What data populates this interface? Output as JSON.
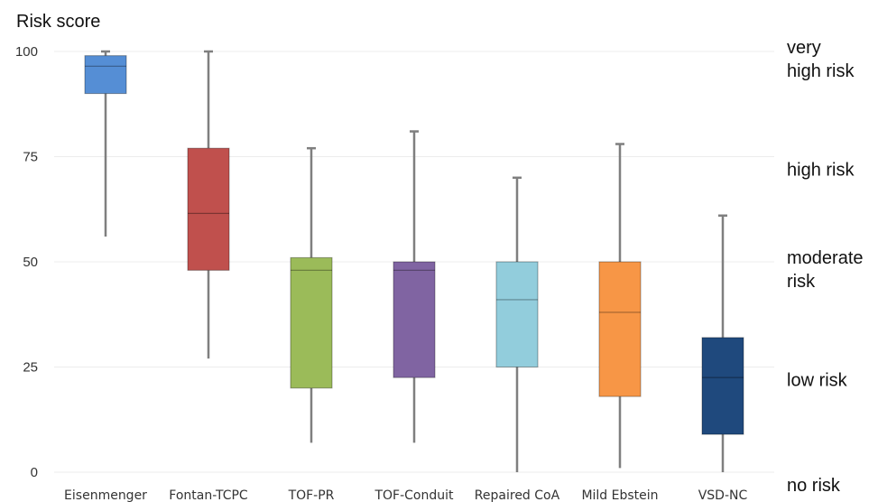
{
  "chart_data": {
    "type": "box",
    "ylabel": "Risk score",
    "ylim": [
      0,
      100
    ],
    "yticks": [
      "0",
      "25",
      "50",
      "75",
      "100"
    ],
    "grid": true,
    "categories": [
      "Eisenmenger",
      "Fontan-TCPC",
      "TOF-PR",
      "TOF-Conduit",
      "Repaired CoA",
      "Mild Ebstein",
      "VSD-NC"
    ],
    "boxes": [
      {
        "category": "Eisenmenger",
        "min": 56,
        "q1": 90,
        "median": 96.5,
        "q3": 99,
        "max": 100,
        "color": "#558ED5"
      },
      {
        "category": "Fontan-TCPC",
        "min": 27,
        "q1": 48,
        "median": 61.5,
        "q3": 77,
        "max": 100,
        "color": "#C0504D"
      },
      {
        "category": "TOF-PR",
        "min": 7,
        "q1": 20,
        "median": 48,
        "q3": 51,
        "max": 77,
        "color": "#9BBB59"
      },
      {
        "category": "TOF-Conduit",
        "min": 7,
        "q1": 22.5,
        "median": 48,
        "q3": 50,
        "max": 81,
        "color": "#8064A2"
      },
      {
        "category": "Repaired CoA",
        "min": 0,
        "q1": 25,
        "median": 41,
        "q3": 50,
        "max": 70,
        "color": "#92CDDC"
      },
      {
        "category": "Mild Ebstein",
        "min": 1,
        "q1": 18,
        "median": 38,
        "q3": 50,
        "max": 78,
        "color": "#F79646"
      },
      {
        "category": "VSD-NC",
        "min": 0,
        "q1": 9,
        "median": 22.5,
        "q3": 32,
        "max": 61,
        "color": "#1F497D"
      }
    ],
    "risk_bands": [
      {
        "line1": "very",
        "line2": "high risk",
        "value": 100
      },
      {
        "line1": "high risk",
        "line2": "",
        "value": 75
      },
      {
        "line1": "moderate",
        "line2": "risk",
        "value": 50
      },
      {
        "line1": "low risk",
        "line2": "",
        "value": 25
      },
      {
        "line1": "no risk",
        "line2": "",
        "value": 0
      }
    ]
  }
}
